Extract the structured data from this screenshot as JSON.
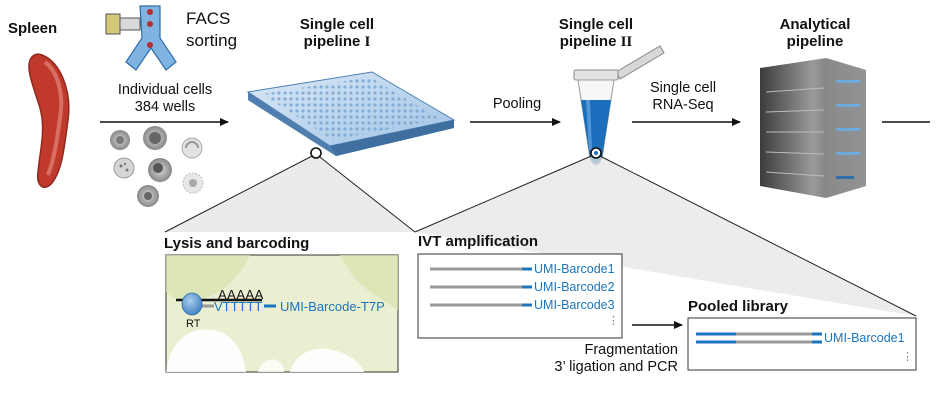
{
  "spleen": {
    "label": "Spleen"
  },
  "facs": {
    "line1": "FACS",
    "line2": "sorting"
  },
  "cells": {
    "line1": "Individual cells",
    "line2": "384 wells"
  },
  "pipeline1": {
    "line1": "Single cell",
    "line2_prefix": "pipeline ",
    "numeral": "I"
  },
  "pooling": {
    "label": "Pooling"
  },
  "pipeline2": {
    "line1": "Single cell",
    "line2_prefix": "pipeline ",
    "numeral": "II"
  },
  "rnaseq": {
    "line1": "Single cell",
    "line2": "RNA-Seq"
  },
  "analytical": {
    "line1": "Analytical",
    "line2": "pipeline"
  },
  "lysis": {
    "title": "Lysis and barcoding",
    "polyA": "AAAAA",
    "polyT": "VTTTTT",
    "barcode": "UMI-Barcode-T7P",
    "enzyme": "RT"
  },
  "ivt": {
    "title": "IVT amplification",
    "barcodes": [
      "UMI-Barcode1",
      "UMI-Barcode2",
      "UMI-Barcode3"
    ],
    "ellipsis": "⋮"
  },
  "fragmentation": {
    "line1": "Fragmentation",
    "line2": "3’ ligation and PCR"
  },
  "pooled": {
    "title": "Pooled library",
    "barcode": "UMI-Barcode1",
    "ellipsis": "⋮"
  },
  "colors": {
    "accent": "#1b75bc",
    "panel_bg": "#e9efd0",
    "spleen": "#b8322a"
  }
}
